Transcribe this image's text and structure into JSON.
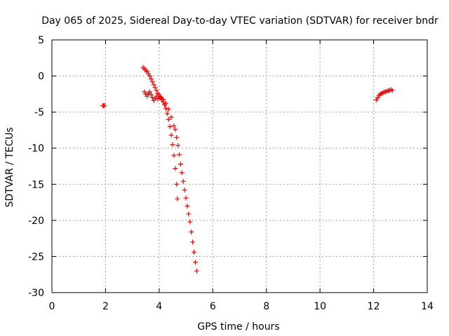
{
  "chart_data": {
    "type": "scatter",
    "title": "Day 065 of 2025, Sidereal Day-to-day VTEC variation (SDTVAR) for receiver bndr",
    "xlabel": "GPS time / hours",
    "ylabel": "SDTVAR / TECUs",
    "xlim": [
      0,
      14
    ],
    "ylim": [
      -30,
      5
    ],
    "xticks": [
      0,
      2,
      4,
      6,
      8,
      10,
      12,
      14
    ],
    "yticks": [
      5,
      0,
      -5,
      -10,
      -15,
      -20,
      -25,
      -30
    ],
    "xtick_labels": [
      "0",
      "2",
      "4",
      "6",
      "8",
      "10",
      "12",
      "14"
    ],
    "ytick_labels": [
      "5",
      "0",
      "-5",
      "-10",
      "-15",
      "-20",
      "-25",
      "-30"
    ],
    "grid": true,
    "marker": "plus",
    "color": "#ff0000",
    "series": [
      {
        "points": [
          [
            1.9,
            -4.1
          ],
          [
            1.93,
            -4.1
          ],
          [
            1.96,
            -4.1
          ],
          [
            3.4,
            1.2
          ],
          [
            3.45,
            1.0
          ],
          [
            3.5,
            0.8
          ],
          [
            3.55,
            0.6
          ],
          [
            3.6,
            0.3
          ],
          [
            3.65,
            0.0
          ],
          [
            3.7,
            -0.4
          ],
          [
            3.75,
            -0.8
          ],
          [
            3.8,
            -1.2
          ],
          [
            3.85,
            -1.6
          ],
          [
            3.9,
            -2.0
          ],
          [
            3.95,
            -2.4
          ],
          [
            4.0,
            -2.8
          ],
          [
            4.05,
            -3.0
          ],
          [
            4.1,
            -3.1
          ],
          [
            3.45,
            -2.2
          ],
          [
            3.5,
            -2.5
          ],
          [
            3.55,
            -2.8
          ],
          [
            3.6,
            -2.4
          ],
          [
            3.65,
            -2.2
          ],
          [
            3.7,
            -2.6
          ],
          [
            3.75,
            -3.0
          ],
          [
            3.8,
            -3.4
          ],
          [
            3.85,
            -3.1
          ],
          [
            3.9,
            -2.8
          ],
          [
            3.95,
            -3.2
          ],
          [
            4.0,
            -2.6
          ],
          [
            4.05,
            -2.9
          ],
          [
            4.1,
            -3.3
          ],
          [
            4.15,
            -3.6
          ],
          [
            4.2,
            -4.0
          ],
          [
            4.25,
            -4.5
          ],
          [
            4.3,
            -5.2
          ],
          [
            4.35,
            -6.0
          ],
          [
            4.4,
            -7.0
          ],
          [
            4.45,
            -8.2
          ],
          [
            4.5,
            -9.5
          ],
          [
            4.55,
            -11.0
          ],
          [
            4.6,
            -12.8
          ],
          [
            4.65,
            -15.0
          ],
          [
            4.68,
            -17.0
          ],
          [
            4.05,
            -3.0
          ],
          [
            4.15,
            -3.3
          ],
          [
            4.25,
            -3.8
          ],
          [
            4.35,
            -4.6
          ],
          [
            4.45,
            -5.7
          ],
          [
            4.55,
            -6.9
          ],
          [
            4.6,
            -7.4
          ],
          [
            4.65,
            -8.5
          ],
          [
            4.7,
            -9.6
          ],
          [
            4.75,
            -10.9
          ],
          [
            4.8,
            -12.2
          ],
          [
            4.85,
            -13.4
          ],
          [
            4.9,
            -14.6
          ],
          [
            4.95,
            -15.8
          ],
          [
            5.0,
            -16.9
          ],
          [
            5.05,
            -18.0
          ],
          [
            5.1,
            -19.1
          ],
          [
            5.15,
            -20.2
          ],
          [
            5.2,
            -21.6
          ],
          [
            5.25,
            -23.0
          ],
          [
            5.3,
            -24.4
          ],
          [
            5.35,
            -25.8
          ],
          [
            5.4,
            -27.0
          ],
          [
            12.1,
            -3.3
          ],
          [
            12.15,
            -3.0
          ],
          [
            12.2,
            -2.7
          ],
          [
            12.25,
            -2.5
          ],
          [
            12.3,
            -2.4
          ],
          [
            12.35,
            -2.3
          ],
          [
            12.4,
            -2.2
          ],
          [
            12.45,
            -2.2
          ],
          [
            12.5,
            -2.1
          ],
          [
            12.55,
            -2.0
          ],
          [
            12.6,
            -2.0
          ],
          [
            12.65,
            -1.9
          ],
          [
            12.7,
            -2.0
          ]
        ]
      }
    ]
  }
}
